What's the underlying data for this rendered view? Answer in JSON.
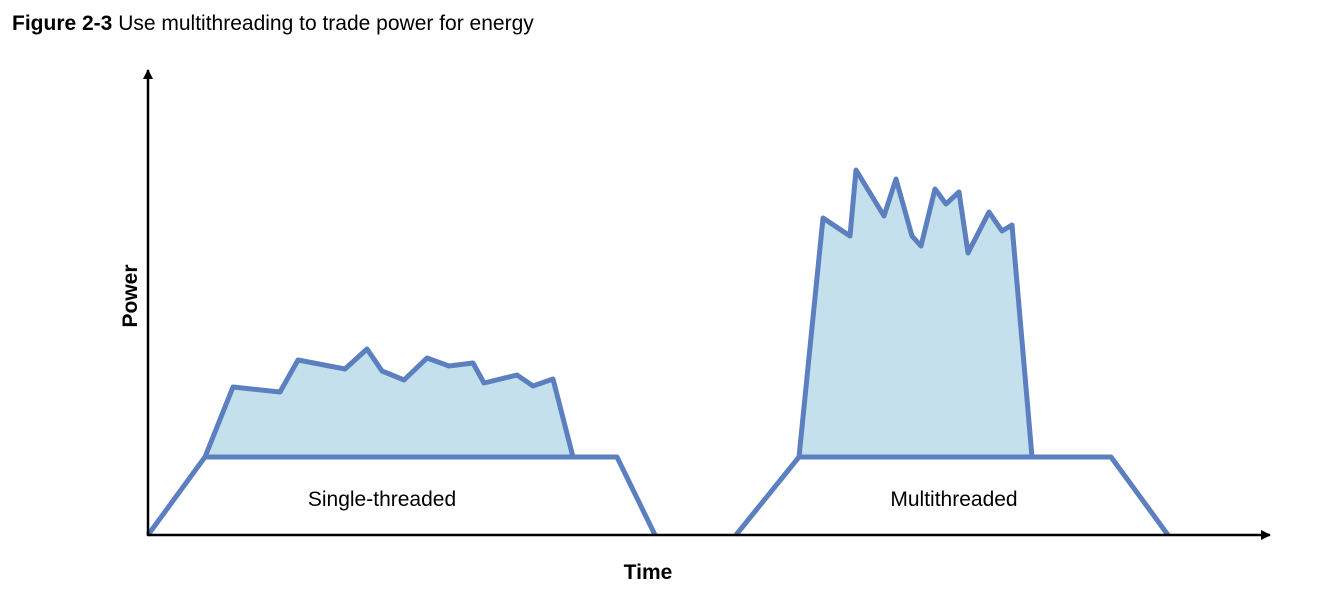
{
  "caption": {
    "label": "Figure 2-3",
    "text": "Use multithreading to trade power for energy"
  },
  "axes": {
    "y_label": "Power",
    "x_label": "Time"
  },
  "blocks": [
    {
      "label": "Single-threaded"
    },
    {
      "label": "Multithreaded"
    }
  ],
  "colors": {
    "stroke": "#5b7fbf",
    "fill": "#c4e0ec",
    "axis": "#000000"
  }
}
